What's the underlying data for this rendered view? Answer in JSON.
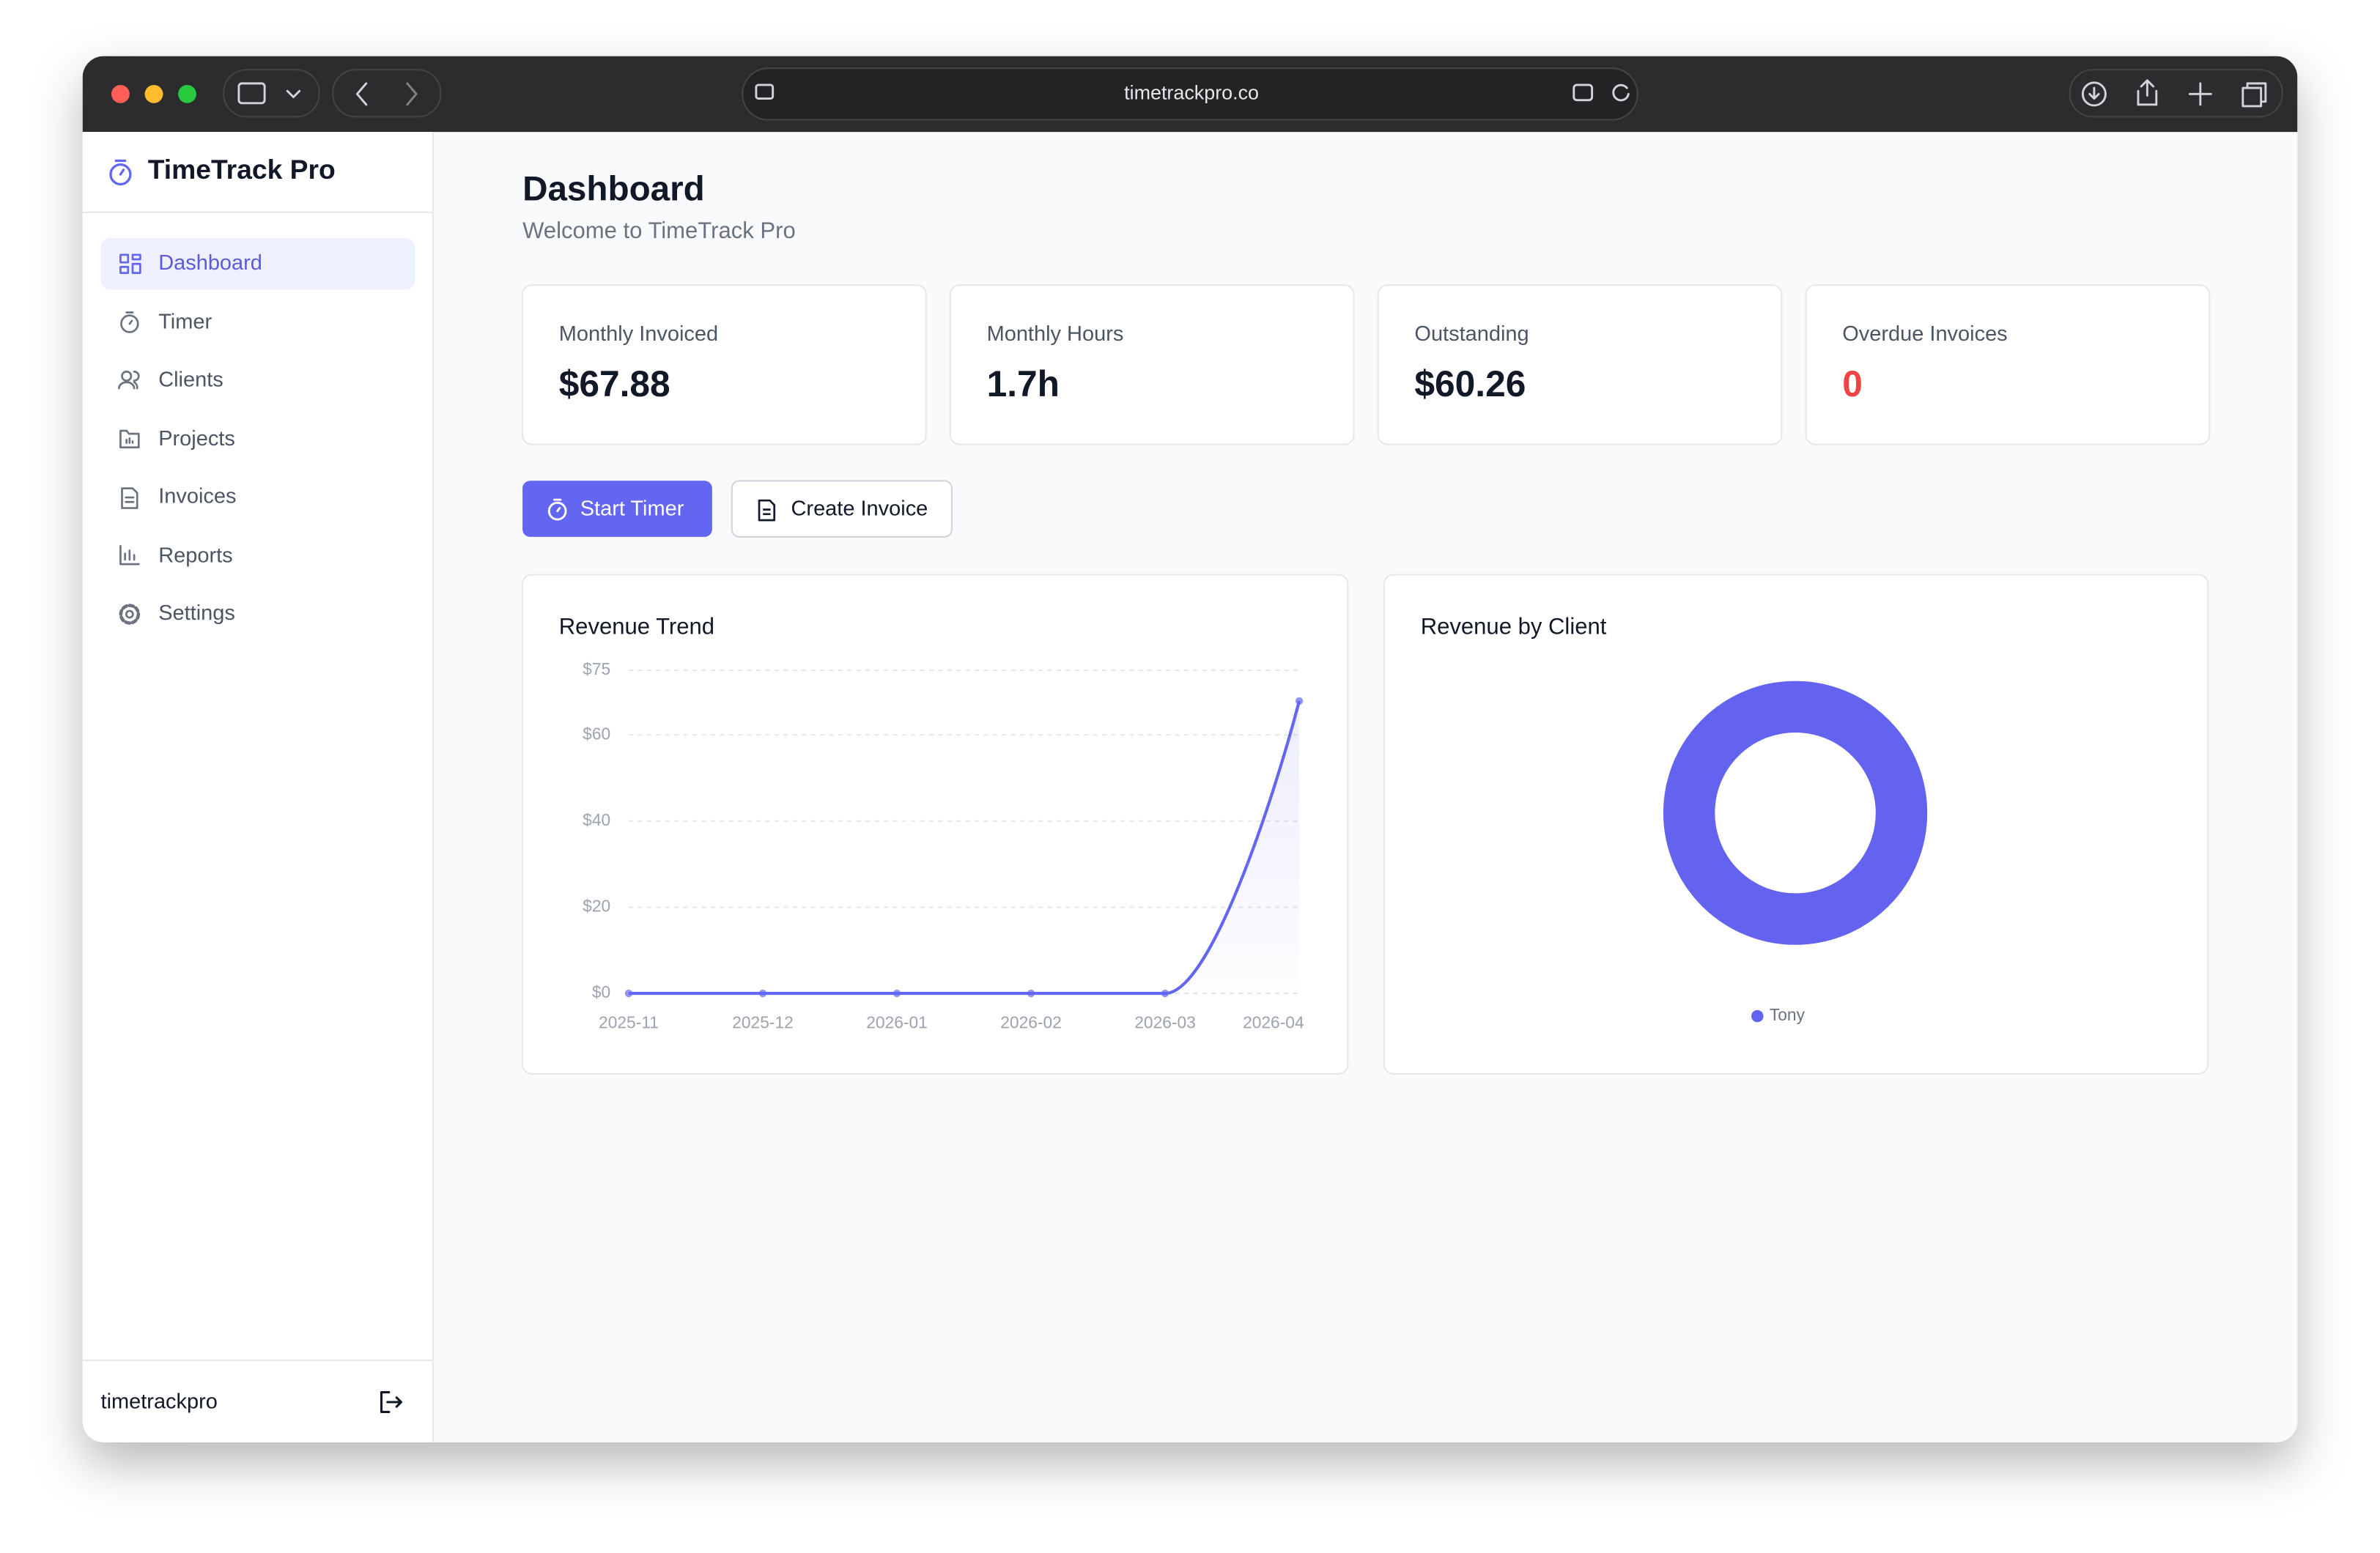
{
  "browser": {
    "url": "timetrackpro.co"
  },
  "sidebar": {
    "brand": "TimeTrack Pro",
    "nav": [
      "Dashboard",
      "Timer",
      "Clients",
      "Projects",
      "Invoices",
      "Reports",
      "Settings"
    ],
    "user": "timetrackpro"
  },
  "header": {
    "title": "Dashboard",
    "subtitle": "Welcome to TimeTrack Pro"
  },
  "stats": [
    {
      "label": "Monthly Invoiced",
      "value": "$67.88"
    },
    {
      "label": "Monthly Hours",
      "value": "1.7h"
    },
    {
      "label": "Outstanding",
      "value": "$60.26"
    },
    {
      "label": "Overdue Invoices",
      "value": "0"
    }
  ],
  "buttons": [
    "Start Timer",
    "Create Invoice"
  ],
  "chart_data": [
    {
      "type": "line",
      "title": "Revenue Trend",
      "categories": [
        "2025-11",
        "2025-12",
        "2026-01",
        "2026-02",
        "2026-03",
        "2026-04"
      ],
      "values": [
        0,
        0,
        0,
        0,
        0,
        67.88
      ],
      "color": "#6366f1",
      "ylim": [
        0,
        75
      ],
      "yticks": [
        {
          "value": 0,
          "label": "$0"
        },
        {
          "value": 20,
          "label": "$20"
        },
        {
          "value": 40,
          "label": "$40"
        },
        {
          "value": 60,
          "label": "$60"
        },
        {
          "value": 75,
          "label": "$75"
        }
      ],
      "grid": true
    },
    {
      "type": "pie",
      "title": "Revenue by Client",
      "categories": [
        "Tony"
      ],
      "values": [
        67.88
      ],
      "colors": [
        "#6363ef"
      ],
      "donut": true,
      "legend": "bottom"
    }
  ]
}
